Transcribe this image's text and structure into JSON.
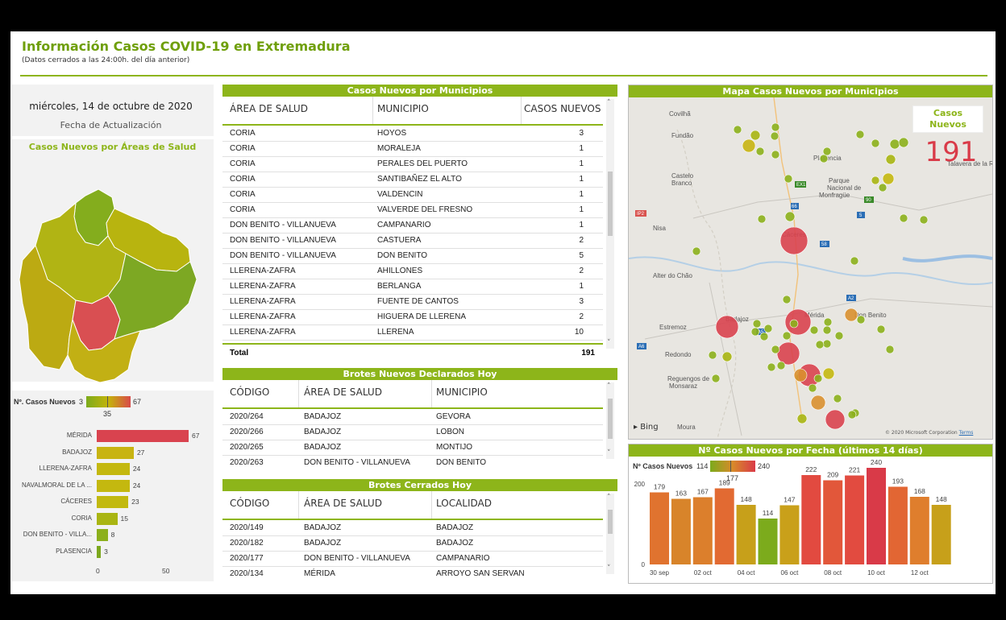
{
  "header": {
    "title": "Información Casos COVID-19 en Extremadura",
    "subtitle": "(Datos cerrados a las 24:00h. del día anterior)"
  },
  "update": {
    "date": "miércoles, 14 de octubre de 2020",
    "caption": "Fecha de Actualización"
  },
  "areas_map": {
    "title": "Casos Nuevos por Áreas de Salud",
    "colors": {
      "low": "#7cab1c",
      "mid": "#c4b40a",
      "high": "#d94a4a"
    }
  },
  "areas_chart": {
    "legend_label": "Nº. Casos Nuevos",
    "legend_min": "3",
    "legend_mid": "35",
    "legend_max": "67",
    "axis_ticks": [
      "0",
      "50"
    ],
    "bars": [
      {
        "label": "MÉRIDA",
        "value": 67,
        "color": "#d9434f"
      },
      {
        "label": "BADAJOZ",
        "value": 27,
        "color": "#c8b412"
      },
      {
        "label": "LLERENA-ZAFRA",
        "value": 24,
        "color": "#c4b80f"
      },
      {
        "label": "NAVALMORAL DE LA ...",
        "value": 24,
        "color": "#c4b80f"
      },
      {
        "label": "CÁCERES",
        "value": 23,
        "color": "#c2b90f"
      },
      {
        "label": "CORIA",
        "value": 15,
        "color": "#a9b512"
      },
      {
        "label": "DON BENITO - VILLA...",
        "value": 8,
        "color": "#8cb01c"
      },
      {
        "label": "PLASENCIA",
        "value": 3,
        "color": "#7ca81e"
      }
    ]
  },
  "municipios": {
    "title": "Casos Nuevos por Municipios",
    "columns": [
      "ÁREA DE SALUD",
      "MUNICIPIO",
      "CASOS NUEVOS"
    ],
    "rows": [
      [
        "CORIA",
        "HOYOS",
        "3"
      ],
      [
        "CORIA",
        "MORALEJA",
        "1"
      ],
      [
        "CORIA",
        "PERALES DEL PUERTO",
        "1"
      ],
      [
        "CORIA",
        "SANTIBAÑEZ EL ALTO",
        "1"
      ],
      [
        "CORIA",
        "VALDENCIN",
        "1"
      ],
      [
        "CORIA",
        "VALVERDE DEL FRESNO",
        "1"
      ],
      [
        "DON BENITO - VILLANUEVA",
        "CAMPANARIO",
        "1"
      ],
      [
        "DON BENITO - VILLANUEVA",
        "CASTUERA",
        "2"
      ],
      [
        "DON BENITO - VILLANUEVA",
        "DON BENITO",
        "5"
      ],
      [
        "LLERENA-ZAFRA",
        "AHILLONES",
        "2"
      ],
      [
        "LLERENA-ZAFRA",
        "BERLANGA",
        "1"
      ],
      [
        "LLERENA-ZAFRA",
        "FUENTE DE CANTOS",
        "3"
      ],
      [
        "LLERENA-ZAFRA",
        "HIGUERA DE LLERENA",
        "2"
      ],
      [
        "LLERENA-ZAFRA",
        "LLERENA",
        "10"
      ]
    ],
    "total_label": "Total",
    "total_value": "191"
  },
  "brotes_nuevos": {
    "title": "Brotes Nuevos Declarados Hoy",
    "columns": [
      "CÓDIGO",
      "ÁREA DE SALUD",
      "MUNICIPIO"
    ],
    "rows": [
      [
        "2020/264",
        "BADAJOZ",
        "GEVORA"
      ],
      [
        "2020/266",
        "BADAJOZ",
        "LOBON"
      ],
      [
        "2020/265",
        "BADAJOZ",
        "MONTIJO"
      ],
      [
        "2020/263",
        "DON BENITO - VILLANUEVA",
        "DON BENITO"
      ]
    ]
  },
  "brotes_cerrados": {
    "title": "Brotes Cerrados Hoy",
    "columns": [
      "CÓDIGO",
      "ÁREA DE SALUD",
      "LOCALIDAD"
    ],
    "rows": [
      [
        "2020/149",
        "BADAJOZ",
        "BADAJOZ"
      ],
      [
        "2020/182",
        "BADAJOZ",
        "BADAJOZ"
      ],
      [
        "2020/177",
        "DON BENITO - VILLANUEVA",
        "CAMPANARIO"
      ],
      [
        "2020/134",
        "MÉRIDA",
        "ARROYO SAN SERVAN"
      ]
    ]
  },
  "mapa": {
    "title": "Mapa Casos Nuevos por Municipios",
    "card_label": "Casos Nuevos",
    "card_value": "191",
    "places": [
      "Covilhã",
      "Fundão",
      "Castelo Branco",
      "Plasencia",
      "Parque Nacional de Monfragüe",
      "Talavera de la Reina",
      "Nisa",
      "Cáceres",
      "Alter do Chão",
      "Badajoz",
      "Mérida",
      "Don Benito",
      "Estremoz",
      "Redondo",
      "Reguengos de Monsaraz",
      "Moura"
    ],
    "roads": [
      "IP2",
      "EX1",
      "66",
      "5",
      "90",
      "58",
      "A2",
      "A6",
      "A5"
    ],
    "bing": "Bing",
    "copyright": "© 2020 Microsoft Corporation",
    "terms": "Terms"
  },
  "fecha_chart": {
    "title": "Nº Casos Nuevos por Fecha (últimos 14 días)",
    "legend_label": "Nº Casos Nuevos",
    "legend_min": "114",
    "legend_mid": "177",
    "legend_max": "240",
    "y_ticks": [
      "200",
      "0"
    ],
    "x_ticks": [
      "30 sep",
      "02 oct",
      "04 oct",
      "06 oct",
      "08 oct",
      "10 oct",
      "12 oct"
    ],
    "bars": [
      {
        "value": 179,
        "color": "#e0732f"
      },
      {
        "value": 163,
        "color": "#d8842a"
      },
      {
        "value": 167,
        "color": "#dc7f2c"
      },
      {
        "value": 189,
        "color": "#e26a32"
      },
      {
        "value": 148,
        "color": "#c7a01a"
      },
      {
        "value": 114,
        "color": "#7cab1c"
      },
      {
        "value": 147,
        "color": "#c9a01a"
      },
      {
        "value": 222,
        "color": "#e24a40"
      },
      {
        "value": 209,
        "color": "#e2573a"
      },
      {
        "value": 221,
        "color": "#e24b40"
      },
      {
        "value": 240,
        "color": "#d93a48"
      },
      {
        "value": 193,
        "color": "#e26633"
      },
      {
        "value": 168,
        "color": "#df7e2d"
      },
      {
        "value": 148,
        "color": "#c7a01a"
      }
    ]
  }
}
